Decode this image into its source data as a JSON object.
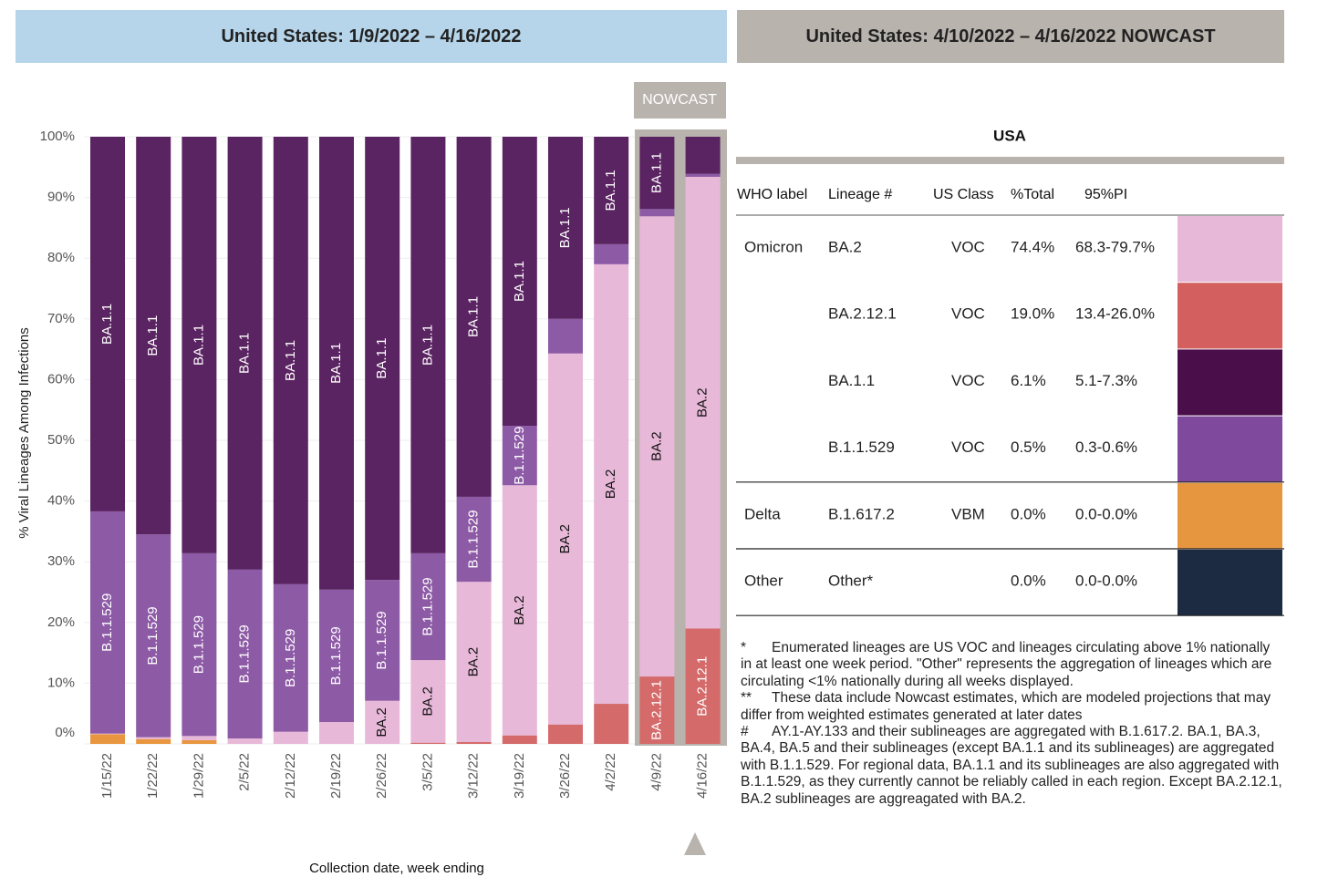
{
  "header": {
    "left_title": "United States: 1/9/2022 – 4/16/2022",
    "right_title": "United States: 4/10/2022 – 4/16/2022 NOWCAST"
  },
  "chart_data": {
    "type": "stacked_bar",
    "y_label": "% Viral Lineages Among Infections",
    "x_label": "Collection date, week ending",
    "nowcast_label": "NOWCAST",
    "categories": [
      "1/15/22",
      "1/22/22",
      "1/29/22",
      "2/5/22",
      "2/12/22",
      "2/19/22",
      "2/26/22",
      "3/5/22",
      "3/12/22",
      "3/19/22",
      "3/26/22",
      "4/2/22",
      "4/9/22",
      "4/16/22"
    ],
    "series": [
      {
        "name": "B.1.617.2",
        "color": "#e8963f",
        "values": [
          1.6,
          0.8,
          0.6,
          0,
          0,
          0,
          0,
          0,
          0,
          0,
          0,
          0,
          0,
          0
        ]
      },
      {
        "name": "BA.2.12.1",
        "color": "#d46a6a",
        "values": [
          0,
          0,
          0,
          0,
          0,
          0,
          0,
          0.2,
          0.3,
          1.4,
          3.2,
          6.6,
          11.1,
          19.0
        ]
      },
      {
        "name": "BA.2",
        "color": "#e8b8d9",
        "values": [
          0.1,
          0.3,
          0.7,
          0.9,
          2.0,
          3.6,
          7.1,
          13.6,
          26.4,
          41.2,
          61.1,
          72.4,
          75.8,
          74.4
        ]
      },
      {
        "name": "B.1.1.529",
        "color": "#8d5aa6",
        "values": [
          36.6,
          33.4,
          30.1,
          27.8,
          24.3,
          21.8,
          19.9,
          17.6,
          14.0,
          9.8,
          5.7,
          3.3,
          1.2,
          0.5
        ]
      },
      {
        "name": "BA.1.1",
        "color": "#5a2361",
        "values": [
          61.7,
          65.5,
          68.6,
          71.3,
          73.7,
          74.6,
          73.0,
          68.6,
          59.3,
          47.6,
          30.0,
          17.7,
          11.9,
          6.1
        ]
      }
    ],
    "ylim": [
      0,
      100
    ],
    "yticks": [
      {
        "value": 0,
        "label": "0%"
      },
      {
        "value": 10,
        "label": "10%"
      },
      {
        "value": 20,
        "label": "20%"
      },
      {
        "value": 30,
        "label": "30%"
      },
      {
        "value": 40,
        "label": "40%"
      },
      {
        "value": 50,
        "label": "50%"
      },
      {
        "value": 60,
        "label": "60%"
      },
      {
        "value": 70,
        "label": "70%"
      },
      {
        "value": 80,
        "label": "80%"
      },
      {
        "value": 90,
        "label": "90%"
      },
      {
        "value": 100,
        "label": "100%"
      }
    ],
    "grid": true
  },
  "table": {
    "title": "USA",
    "columns": [
      "WHO label",
      "Lineage #",
      "US Class",
      "%Total",
      "95%PI"
    ],
    "groups": [
      {
        "label": "Omicron",
        "rows": [
          {
            "lineage": "BA.2",
            "class": "VOC",
            "total": "74.4%",
            "pi": "68.3-79.7%",
            "color": "#e8b8d9"
          },
          {
            "lineage": "BA.2.12.1",
            "class": "VOC",
            "total": "19.0%",
            "pi": "13.4-26.0%",
            "color": "#d35f5f"
          },
          {
            "lineage": "BA.1.1",
            "class": "VOC",
            "total": "6.1%",
            "pi": "5.1-7.3%",
            "color": "#4a0e4b"
          },
          {
            "lineage": "B.1.1.529",
            "class": "VOC",
            "total": "0.5%",
            "pi": "0.3-0.6%",
            "color": "#7f4a9d"
          }
        ]
      },
      {
        "label": "Delta",
        "rows": [
          {
            "lineage": "B.1.617.2",
            "class": "VBM",
            "total": "0.0%",
            "pi": "0.0-0.0%",
            "color": "#e5963f"
          }
        ]
      },
      {
        "label": "Other",
        "rows": [
          {
            "lineage": "Other*",
            "total": "0.0%",
            "pi": "0.0-0.0%",
            "color": "#1c2b41"
          }
        ]
      }
    ]
  },
  "footnotes": [
    {
      "marker": "*",
      "text": "Enumerated lineages are US VOC and lineages circulating above 1% nationally in at least one week period. \"Other\" represents the aggregation of lineages which are circulating <1% nationally during all weeks displayed."
    },
    {
      "marker": "**",
      "text": "These data include Nowcast estimates, which are modeled projections that may differ from weighted estimates generated at later dates"
    },
    {
      "marker": "#",
      "text": "AY.1-AY.133 and their sublineages are aggregated with B.1.617.2. BA.1, BA.3, BA.4, BA.5 and their sublineages (except BA.1.1 and its sublineages) are aggregated with B.1.1.529. For regional data, BA.1.1 and its sublineages are also aggregated with B.1.1.529, as they currently cannot be reliably called in each region. Except BA.2.12.1, BA.2 sublineages are aggreagated with BA.2."
    }
  ]
}
